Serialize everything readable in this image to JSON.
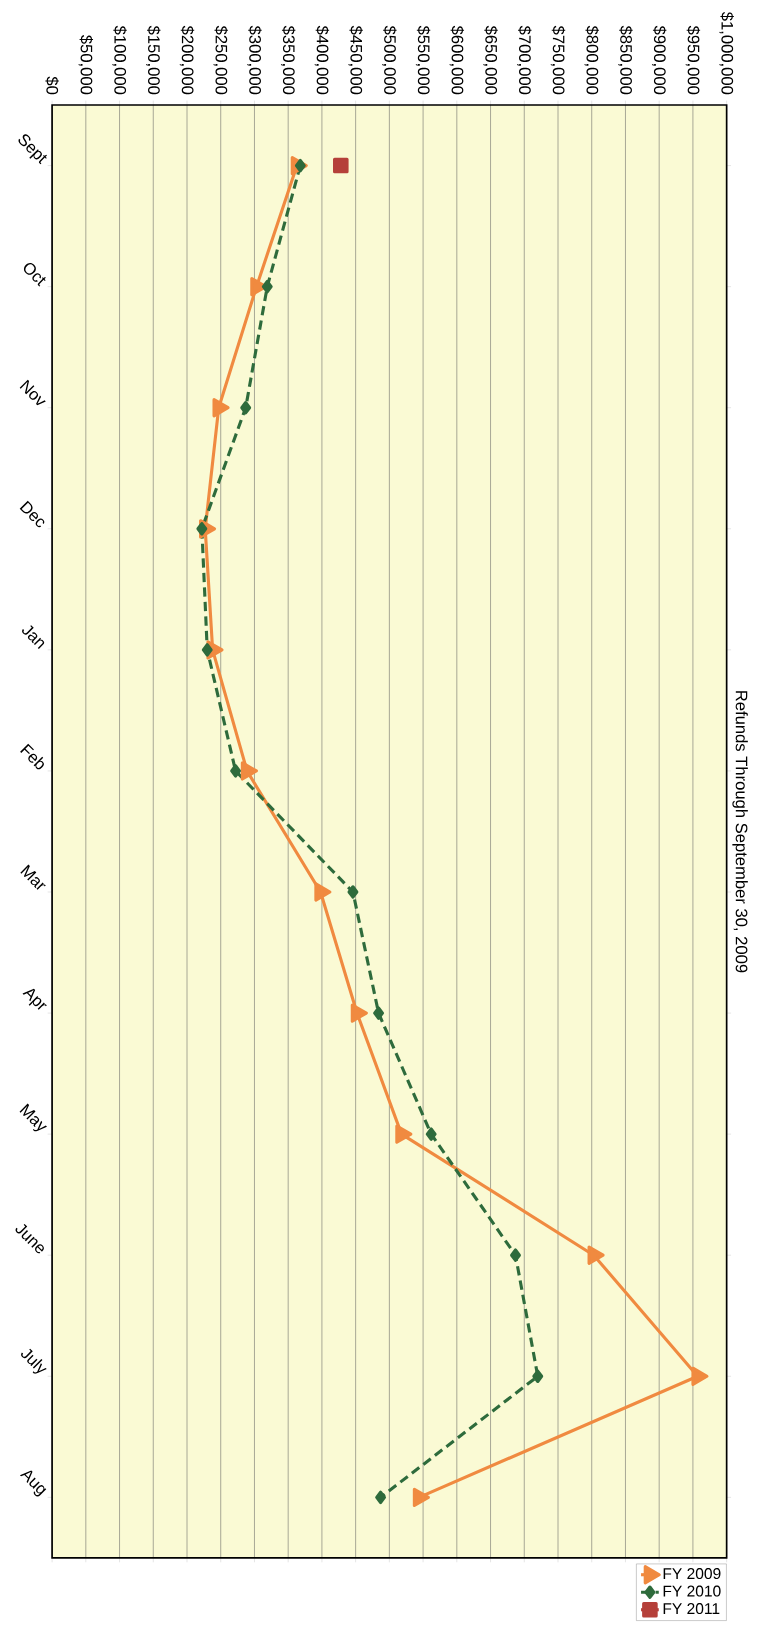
{
  "chart_data": {
    "type": "line",
    "title": "Refunds Through September 30, 2009",
    "orientation": "horizontal",
    "categories": [
      "Sept",
      "Oct",
      "Nov",
      "Dec",
      "Jan",
      "Feb",
      "Mar",
      "Apr",
      "May",
      "June",
      "July",
      "Aug"
    ],
    "xlim": [
      0,
      1000000
    ],
    "xticks": [
      {
        "value": 0,
        "label": "$0"
      },
      {
        "value": 50000,
        "label": "$50,000"
      },
      {
        "value": 100000,
        "label": "$100,000"
      },
      {
        "value": 150000,
        "label": "$150,000"
      },
      {
        "value": 200000,
        "label": "$200,000"
      },
      {
        "value": 250000,
        "label": "$250,000"
      },
      {
        "value": 300000,
        "label": "$300,000"
      },
      {
        "value": 350000,
        "label": "$350,000"
      },
      {
        "value": 400000,
        "label": "$400,000"
      },
      {
        "value": 450000,
        "label": "$450,000"
      },
      {
        "value": 500000,
        "label": "$500,000"
      },
      {
        "value": 550000,
        "label": "$550,000"
      },
      {
        "value": 600000,
        "label": "$600,000"
      },
      {
        "value": 650000,
        "label": "$650,000"
      },
      {
        "value": 700000,
        "label": "$700,000"
      },
      {
        "value": 750000,
        "label": "$750,000"
      },
      {
        "value": 800000,
        "label": "$800,000"
      },
      {
        "value": 850000,
        "label": "$850,000"
      },
      {
        "value": 900000,
        "label": "$900,000"
      },
      {
        "value": 950000,
        "label": "$950,000"
      },
      {
        "value": 1000000,
        "label": "$1,000,000"
      }
    ],
    "grid": "x",
    "legend": "bottom right",
    "series": [
      {
        "name": "FY 2009",
        "color": "#f08a40",
        "marker": "triangle",
        "line_style": "solid",
        "values": [
          363000,
          303000,
          247000,
          227000,
          238000,
          289000,
          398000,
          452000,
          518000,
          803000,
          957000,
          544000
        ]
      },
      {
        "name": "FY 2010",
        "color": "#2e6b3c",
        "marker": "diamond",
        "line_style": "dashed",
        "values": [
          368000,
          319000,
          287000,
          222000,
          230000,
          272000,
          446000,
          484000,
          562000,
          687000,
          720000,
          487000
        ]
      },
      {
        "name": "FY 2011",
        "color": "#b5403a",
        "marker": "square",
        "line_style": "solid",
        "values": [
          428000,
          null,
          null,
          null,
          null,
          null,
          null,
          null,
          null,
          null,
          null,
          null
        ]
      }
    ]
  }
}
